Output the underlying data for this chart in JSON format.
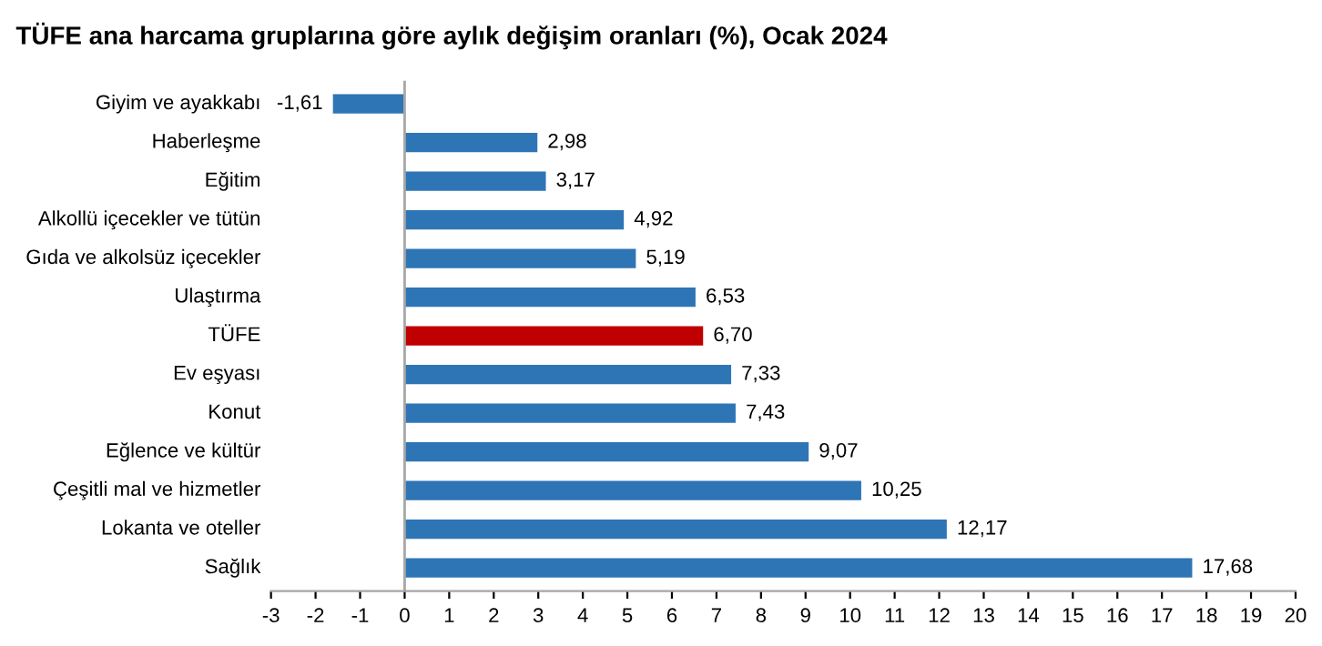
{
  "chart_data": {
    "type": "bar",
    "orientation": "horizontal",
    "title": "TÜFE ana harcama gruplarına göre aylık değişim oranları (%), Ocak 2024",
    "categories": [
      "Giyim ve ayakkabı",
      "Haberleşme",
      "Eğitim",
      "Alkollü içecekler ve tütün",
      "Gıda ve alkolsüz içecekler",
      "Ulaştırma",
      "TÜFE",
      "Ev eşyası",
      "Konut",
      "Eğlence ve kültür",
      "Çeşitli mal ve hizmetler",
      "Lokanta ve oteller",
      "Sağlık"
    ],
    "values": [
      -1.61,
      2.98,
      3.17,
      4.92,
      5.19,
      6.53,
      6.7,
      7.33,
      7.43,
      9.07,
      10.25,
      12.17,
      17.68
    ],
    "value_labels": [
      "-1,61",
      "2,98",
      "3,17",
      "4,92",
      "5,19",
      "6,53",
      "6,70",
      "7,33",
      "7,43",
      "9,07",
      "10,25",
      "12,17",
      "17,68"
    ],
    "colors": [
      "#2e75b6",
      "#2e75b6",
      "#2e75b6",
      "#2e75b6",
      "#2e75b6",
      "#2e75b6",
      "#c00000",
      "#2e75b6",
      "#2e75b6",
      "#2e75b6",
      "#2e75b6",
      "#2e75b6",
      "#2e75b6"
    ],
    "xlim": [
      -3,
      20
    ],
    "xticks": [
      -3,
      -2,
      -1,
      0,
      1,
      2,
      3,
      4,
      5,
      6,
      7,
      8,
      9,
      10,
      11,
      12,
      13,
      14,
      15,
      16,
      17,
      18,
      19,
      20
    ],
    "ref_lines": [
      {
        "axis": "x",
        "value": 0,
        "color": "#a6a6a6"
      }
    ],
    "grid": false,
    "legend": false
  }
}
